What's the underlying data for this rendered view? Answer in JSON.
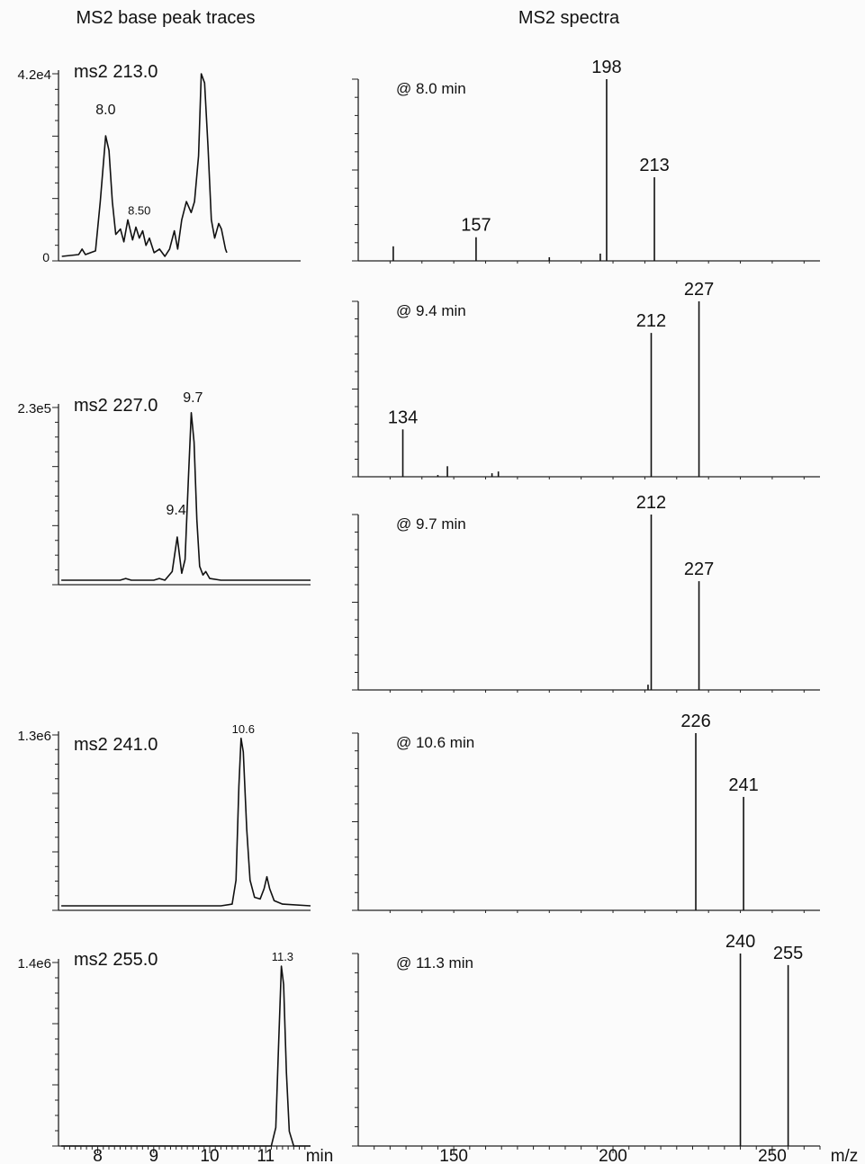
{
  "titles": {
    "left": "MS2 base peak traces",
    "right": "MS2 spectra"
  },
  "units": {
    "time": "min",
    "mz": "m/z"
  },
  "chart_data": [
    {
      "type": "line",
      "panel": "trace",
      "label": "ms2 213.0",
      "ymax_label": "4.2e4",
      "y_zero_label": "0",
      "xlim": [
        7.3,
        9.8
      ],
      "ylim": [
        0,
        1
      ],
      "peak_labels": [
        {
          "x": 8.0,
          "y": 0.75,
          "text": "8.0"
        },
        {
          "x": 8.5,
          "y": 0.2,
          "text": "8.50"
        }
      ],
      "points": [
        [
          7.35,
          0.0
        ],
        [
          7.6,
          0.01
        ],
        [
          7.65,
          0.04
        ],
        [
          7.7,
          0.01
        ],
        [
          7.85,
          0.03
        ],
        [
          7.92,
          0.3
        ],
        [
          8.0,
          0.66
        ],
        [
          8.05,
          0.58
        ],
        [
          8.1,
          0.3
        ],
        [
          8.15,
          0.12
        ],
        [
          8.22,
          0.15
        ],
        [
          8.27,
          0.08
        ],
        [
          8.33,
          0.2
        ],
        [
          8.4,
          0.09
        ],
        [
          8.45,
          0.16
        ],
        [
          8.5,
          0.1
        ],
        [
          8.55,
          0.14
        ],
        [
          8.6,
          0.06
        ],
        [
          8.65,
          0.1
        ],
        [
          8.72,
          0.02
        ],
        [
          8.8,
          0.04
        ],
        [
          8.88,
          0.0
        ],
        [
          8.95,
          0.04
        ],
        [
          9.02,
          0.14
        ],
        [
          9.07,
          0.04
        ],
        [
          9.13,
          0.2
        ],
        [
          9.2,
          0.3
        ],
        [
          9.27,
          0.24
        ],
        [
          9.32,
          0.3
        ],
        [
          9.38,
          0.55
        ],
        [
          9.42,
          1.0
        ],
        [
          9.47,
          0.95
        ],
        [
          9.52,
          0.6
        ],
        [
          9.57,
          0.2
        ],
        [
          9.62,
          0.1
        ],
        [
          9.68,
          0.18
        ],
        [
          9.72,
          0.15
        ],
        [
          9.78,
          0.04
        ],
        [
          9.8,
          0.02
        ]
      ]
    },
    {
      "type": "line",
      "panel": "trace",
      "label": "ms2 227.0",
      "ymax_label": "2.3e5",
      "xlim": [
        7.3,
        11.8
      ],
      "ylim": [
        0,
        1
      ],
      "peak_labels": [
        {
          "x": 9.7,
          "y": 1.0,
          "text": "9.7"
        },
        {
          "x": 9.4,
          "y": 0.35,
          "text": "9.4"
        }
      ],
      "points": [
        [
          7.35,
          0.0
        ],
        [
          8.4,
          0.0
        ],
        [
          8.5,
          0.01
        ],
        [
          8.6,
          0.0
        ],
        [
          9.0,
          0.0
        ],
        [
          9.1,
          0.01
        ],
        [
          9.2,
          0.0
        ],
        [
          9.33,
          0.05
        ],
        [
          9.42,
          0.25
        ],
        [
          9.5,
          0.04
        ],
        [
          9.56,
          0.12
        ],
        [
          9.62,
          0.6
        ],
        [
          9.67,
          0.97
        ],
        [
          9.72,
          0.8
        ],
        [
          9.77,
          0.35
        ],
        [
          9.82,
          0.08
        ],
        [
          9.88,
          0.03
        ],
        [
          9.93,
          0.05
        ],
        [
          10.0,
          0.01
        ],
        [
          10.2,
          0.0
        ],
        [
          11.8,
          0.0
        ]
      ]
    },
    {
      "type": "line",
      "panel": "trace",
      "label": "ms2 241.0",
      "ymax_label": "1.3e6",
      "xlim": [
        7.3,
        11.8
      ],
      "ylim": [
        0,
        1
      ],
      "peak_labels": [
        {
          "x": 10.6,
          "y": 0.98,
          "text": "10.6"
        }
      ],
      "points": [
        [
          7.35,
          0.0
        ],
        [
          10.2,
          0.0
        ],
        [
          10.4,
          0.01
        ],
        [
          10.47,
          0.15
        ],
        [
          10.52,
          0.7
        ],
        [
          10.56,
          0.98
        ],
        [
          10.6,
          0.9
        ],
        [
          10.66,
          0.45
        ],
        [
          10.72,
          0.15
        ],
        [
          10.8,
          0.05
        ],
        [
          10.9,
          0.04
        ],
        [
          10.97,
          0.1
        ],
        [
          11.02,
          0.17
        ],
        [
          11.07,
          0.1
        ],
        [
          11.15,
          0.03
        ],
        [
          11.3,
          0.01
        ],
        [
          11.8,
          0.0
        ]
      ]
    },
    {
      "type": "line",
      "panel": "trace",
      "label": "ms2 255.0",
      "ymax_label": "1.4e6",
      "xlim": [
        7.3,
        11.8
      ],
      "ylim": [
        0,
        1
      ],
      "peak_labels": [
        {
          "x": 11.3,
          "y": 0.98,
          "text": "11.3"
        }
      ],
      "points": [
        [
          7.35,
          0.0
        ],
        [
          11.1,
          0.0
        ],
        [
          11.18,
          0.1
        ],
        [
          11.23,
          0.55
        ],
        [
          11.28,
          0.98
        ],
        [
          11.32,
          0.88
        ],
        [
          11.37,
          0.4
        ],
        [
          11.42,
          0.08
        ],
        [
          11.5,
          0.0
        ],
        [
          11.8,
          0.0
        ]
      ]
    },
    {
      "type": "bar",
      "panel": "spectrum",
      "label": "@ 8.0 min",
      "xlim": [
        120,
        265
      ],
      "ylim": [
        0,
        1
      ],
      "peaks": [
        {
          "mz": 131,
          "i": 0.08
        },
        {
          "mz": 157,
          "i": 0.13,
          "label": "157"
        },
        {
          "mz": 180,
          "i": 0.02
        },
        {
          "mz": 196,
          "i": 0.04
        },
        {
          "mz": 198,
          "i": 1.0,
          "label": "198"
        },
        {
          "mz": 213,
          "i": 0.46,
          "label": "213"
        }
      ]
    },
    {
      "type": "bar",
      "panel": "spectrum",
      "label": "@ 9.4 min",
      "xlim": [
        120,
        265
      ],
      "ylim": [
        0,
        1
      ],
      "peaks": [
        {
          "mz": 134,
          "i": 0.27,
          "label": "134"
        },
        {
          "mz": 145,
          "i": 0.01
        },
        {
          "mz": 148,
          "i": 0.06
        },
        {
          "mz": 162,
          "i": 0.02
        },
        {
          "mz": 164,
          "i": 0.03
        },
        {
          "mz": 212,
          "i": 0.82,
          "label": "212"
        },
        {
          "mz": 227,
          "i": 1.0,
          "label": "227"
        }
      ]
    },
    {
      "type": "bar",
      "panel": "spectrum",
      "label": "@ 9.7 min",
      "xlim": [
        120,
        265
      ],
      "ylim": [
        0,
        1
      ],
      "peaks": [
        {
          "mz": 211,
          "i": 0.03
        },
        {
          "mz": 212,
          "i": 1.0,
          "label": "212"
        },
        {
          "mz": 227,
          "i": 0.62,
          "label": "227"
        }
      ]
    },
    {
      "type": "bar",
      "panel": "spectrum",
      "label": "@ 10.6 min",
      "xlim": [
        120,
        265
      ],
      "ylim": [
        0,
        1
      ],
      "peaks": [
        {
          "mz": 226,
          "i": 1.0,
          "label": "226"
        },
        {
          "mz": 241,
          "i": 0.64,
          "label": "241"
        }
      ]
    },
    {
      "type": "bar",
      "panel": "spectrum",
      "label": "@ 11.3 min",
      "xlim": [
        120,
        265
      ],
      "ylim": [
        0,
        1
      ],
      "peaks": [
        {
          "mz": 240,
          "i": 1.0,
          "label": "240"
        },
        {
          "mz": 255,
          "i": 0.94,
          "label": "255"
        }
      ]
    }
  ],
  "time_axis": {
    "ticks": [
      8,
      9,
      10,
      11
    ]
  },
  "mz_axis": {
    "ticks": [
      150,
      200,
      250
    ]
  }
}
